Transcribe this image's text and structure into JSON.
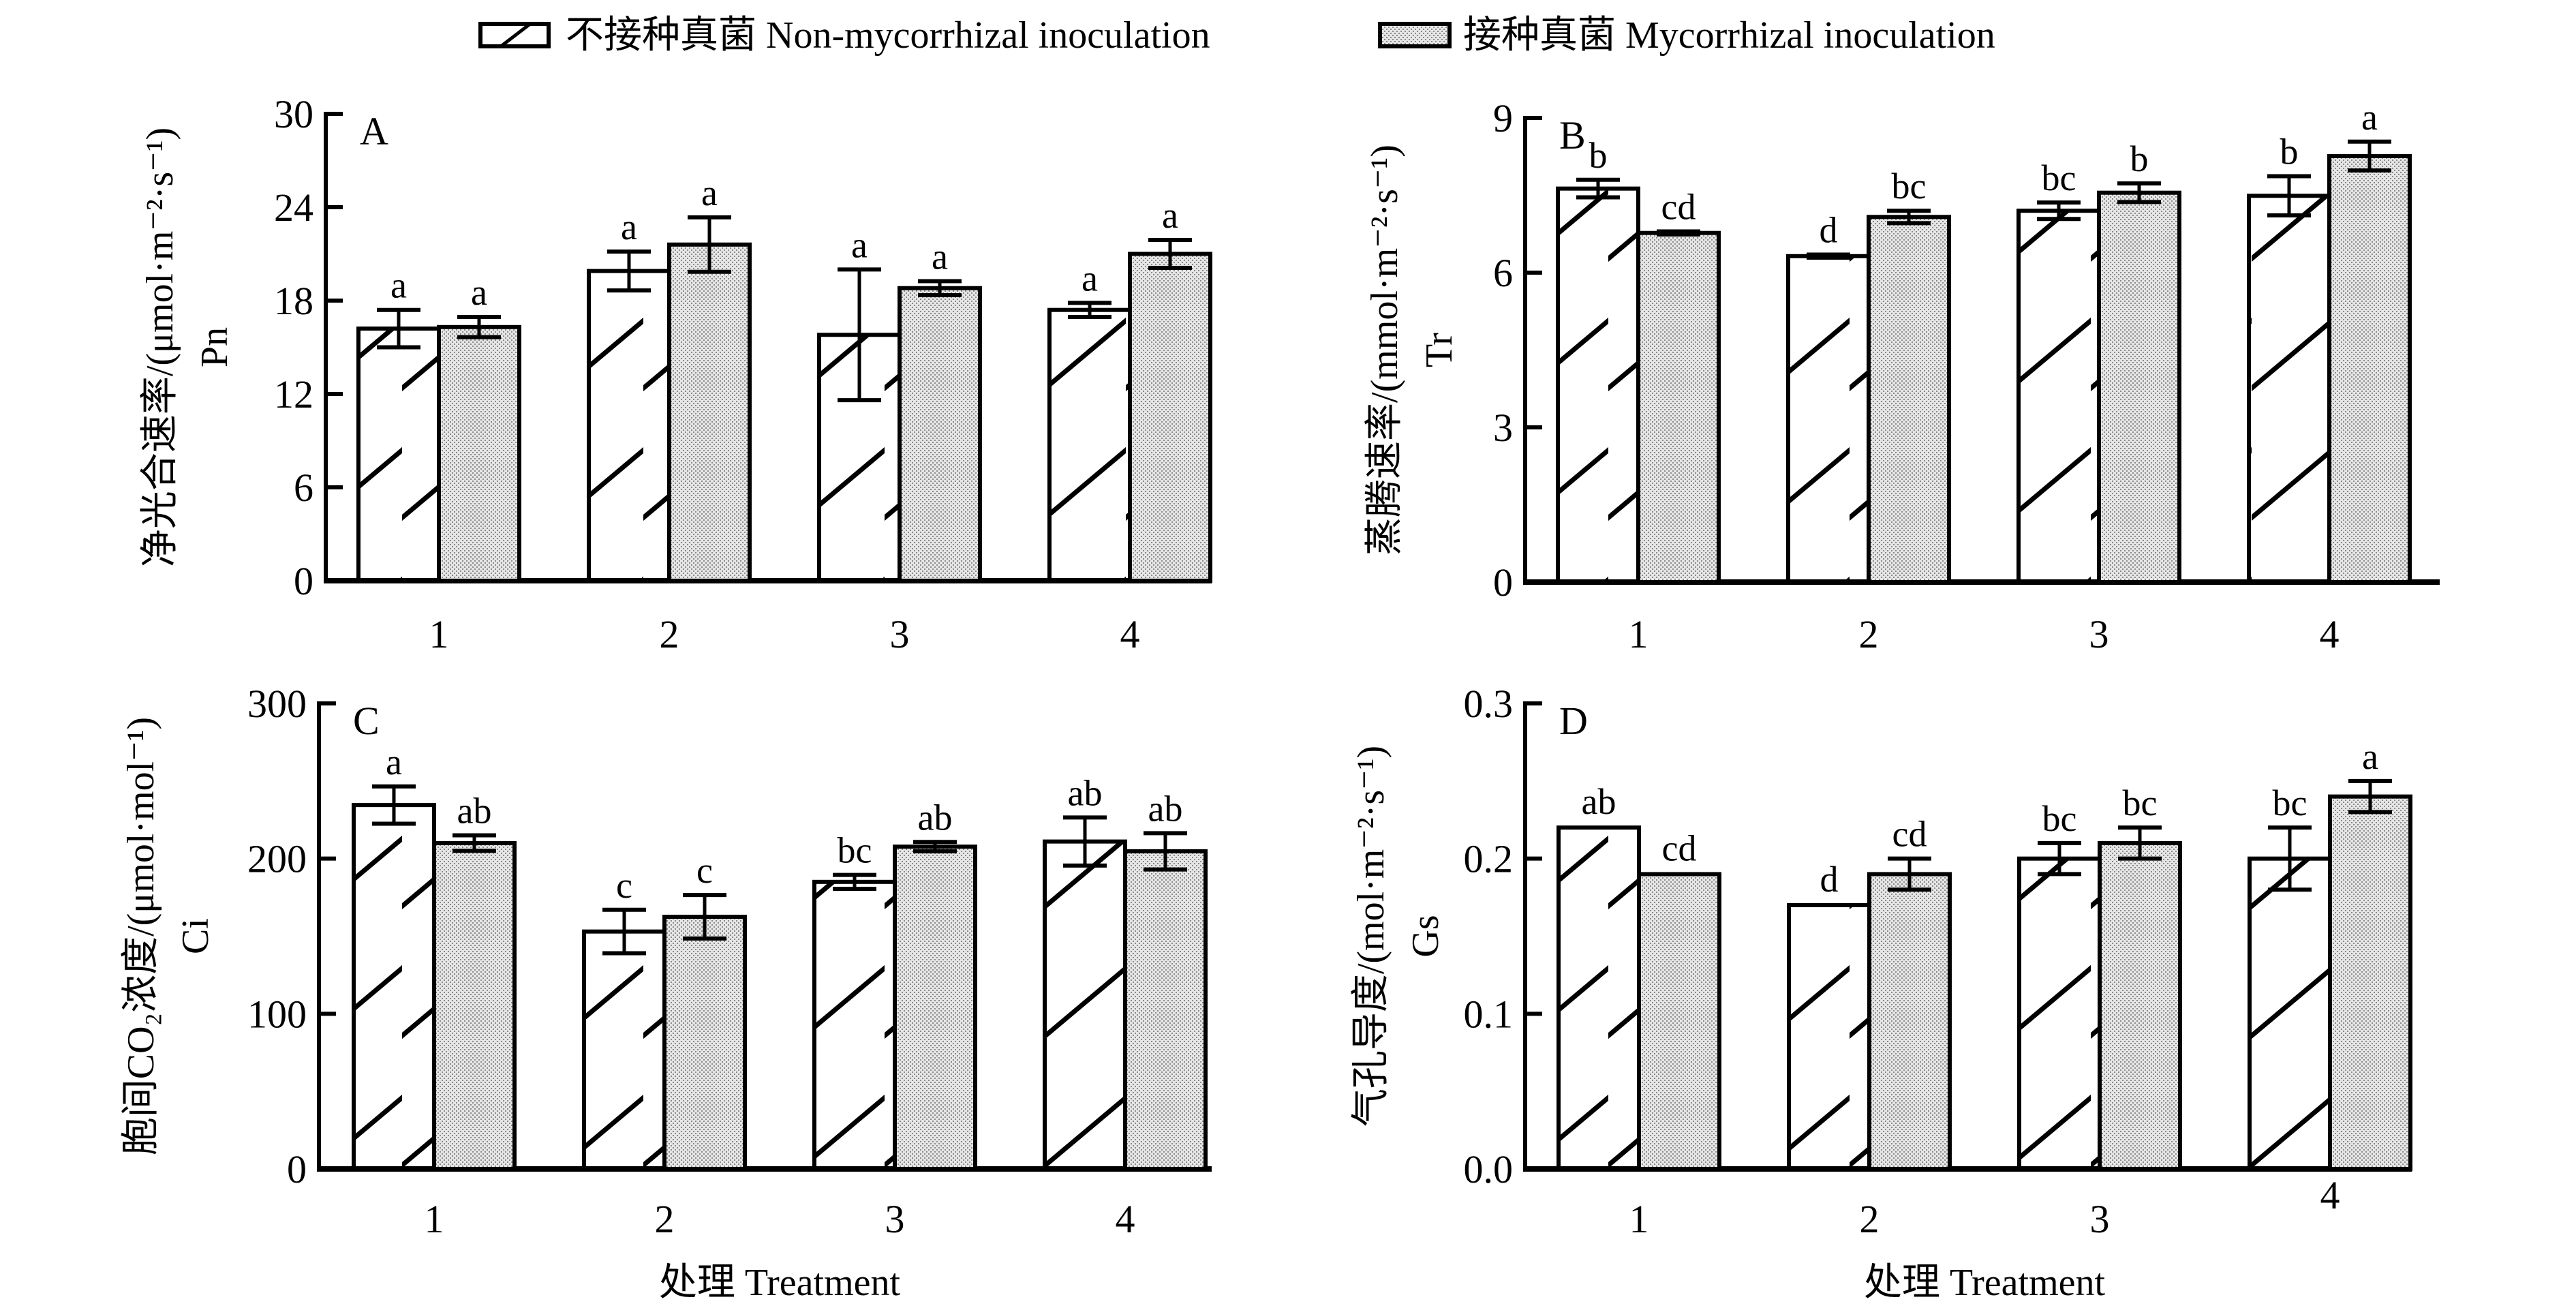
{
  "legend": {
    "items": [
      {
        "label": "不接种真菌 Non-mycorrhizal inoculation",
        "pattern": "hatch"
      },
      {
        "label": "接种真菌 Mycorrhizal inoculation",
        "pattern": "dots"
      }
    ]
  },
  "colors": {
    "stroke": "#000000",
    "dots_fill": "#d9d9d9",
    "background": "#ffffff"
  },
  "chart_data": [
    {
      "type": "bar",
      "panel": "A",
      "ylabel_line1": "净光合速率/(μmol·m⁻²·s⁻¹)",
      "ylabel_line2": "Pn",
      "xlabel": "",
      "categories": [
        "1",
        "2",
        "3",
        "4"
      ],
      "ylim": [
        0,
        30
      ],
      "yticks": [
        0,
        6,
        12,
        18,
        24,
        30
      ],
      "series": [
        {
          "name": "不接种真菌 Non-mycorrhizal inoculation",
          "values": [
            16.2,
            19.9,
            15.8,
            17.4
          ],
          "errors": [
            1.2,
            1.25,
            4.2,
            0.45
          ],
          "letters": [
            "a",
            "a",
            "a",
            "a"
          ]
        },
        {
          "name": "接种真菌 Mycorrhizal inoculation",
          "values": [
            16.3,
            21.6,
            18.8,
            21.0
          ],
          "errors": [
            0.65,
            1.75,
            0.45,
            0.9
          ],
          "letters": [
            "a",
            "a",
            "a",
            "a"
          ]
        }
      ]
    },
    {
      "type": "bar",
      "panel": "B",
      "ylabel_line1": "蒸腾速率/(mmol·m⁻²·s⁻¹)",
      "ylabel_line2": "Tr",
      "xlabel": "",
      "categories": [
        "1",
        "2",
        "3",
        "4"
      ],
      "ylim": [
        0,
        9
      ],
      "yticks": [
        0,
        3,
        6,
        9
      ],
      "series": [
        {
          "name": "不接种真菌 Non-mycorrhizal inoculation",
          "values": [
            7.63,
            6.32,
            7.2,
            7.49
          ],
          "errors": [
            0.17,
            0.03,
            0.16,
            0.38
          ],
          "letters": [
            "b",
            "d",
            "bc",
            "b"
          ]
        },
        {
          "name": "接种真菌 Mycorrhizal inoculation",
          "values": [
            6.77,
            7.08,
            7.55,
            8.26
          ],
          "errors": [
            0.03,
            0.12,
            0.18,
            0.28
          ],
          "letters": [
            "cd",
            "bc",
            "b",
            "a"
          ]
        }
      ]
    },
    {
      "type": "bar",
      "panel": "C",
      "ylabel_line1": "胞间CO₂浓度/(μmol·mol⁻¹)",
      "ylabel_line2": "Ci",
      "xlabel": "处理 Treatment",
      "categories": [
        "1",
        "2",
        "3",
        "4"
      ],
      "ylim": [
        0,
        300
      ],
      "yticks": [
        0,
        100,
        200,
        300
      ],
      "series": [
        {
          "name": "不接种真菌 Non-mycorrhizal inoculation",
          "values": [
            234.5,
            153,
            185,
            211
          ],
          "errors": [
            12,
            14,
            4.5,
            15.5
          ],
          "letters": [
            "a",
            "c",
            "bc",
            "ab"
          ]
        },
        {
          "name": "接种真菌 Mycorrhizal inoculation",
          "values": [
            210,
            162.5,
            207.7,
            204.7
          ],
          "errors": [
            5,
            14,
            3,
            11.7
          ],
          "letters": [
            "ab",
            "c",
            "ab",
            "ab"
          ]
        }
      ]
    },
    {
      "type": "bar",
      "panel": "D",
      "ylabel_line1": "气孔导度/(mol·m⁻²·s⁻¹)",
      "ylabel_line2": "Gs",
      "xlabel": "处理 Treatment",
      "categories": [
        "1",
        "2",
        "3",
        "4"
      ],
      "ylim": [
        0,
        0.3
      ],
      "yticks": [
        "0.0",
        "0.1",
        "0.2",
        "0.3"
      ],
      "series": [
        {
          "name": "不接种真菌 Non-mycorrhizal inoculation",
          "values": [
            0.22,
            0.17,
            0.2,
            0.2
          ],
          "errors": [
            0,
            0,
            0.01,
            0.02
          ],
          "letters": [
            "ab",
            "d",
            "bc",
            "bc"
          ]
        },
        {
          "name": "接种真菌 Mycorrhizal inoculation",
          "values": [
            0.19,
            0.19,
            0.21,
            0.24
          ],
          "errors": [
            0,
            0.01,
            0.01,
            0.01
          ],
          "letters": [
            "cd",
            "cd",
            "bc",
            "a"
          ]
        }
      ]
    }
  ]
}
